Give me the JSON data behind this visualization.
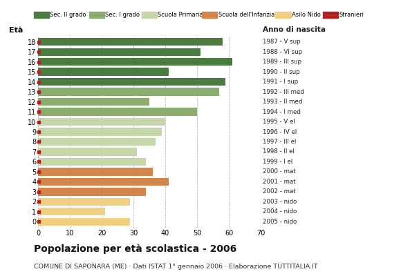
{
  "ages": [
    18,
    17,
    16,
    15,
    14,
    13,
    12,
    11,
    10,
    9,
    8,
    7,
    6,
    5,
    4,
    3,
    2,
    1,
    0
  ],
  "values": [
    58,
    51,
    61,
    41,
    59,
    57,
    35,
    50,
    40,
    39,
    37,
    31,
    34,
    36,
    41,
    34,
    29,
    21,
    29
  ],
  "colors": [
    "#4a7c3f",
    "#4a7c3f",
    "#4a7c3f",
    "#4a7c3f",
    "#4a7c3f",
    "#8aac6e",
    "#8aac6e",
    "#8aac6e",
    "#c5d6a8",
    "#c5d6a8",
    "#c5d6a8",
    "#c5d6a8",
    "#c5d6a8",
    "#d4854a",
    "#d4854a",
    "#d4854a",
    "#f0d080",
    "#f0d080",
    "#f0d080"
  ],
  "right_labels": [
    "1987 - V sup",
    "1988 - VI sup",
    "1989 - III sup",
    "1990 - II sup",
    "1991 - I sup",
    "1992 - III med",
    "1993 - II med",
    "1994 - I med",
    "1995 - V el",
    "1996 - IV el",
    "1997 - III el",
    "1998 - II el",
    "1999 - I el",
    "2000 - mat",
    "2001 - mat",
    "2002 - mat",
    "2003 - nido",
    "2004 - nido",
    "2005 - nido"
  ],
  "stranieri_color": "#b22222",
  "legend_labels": [
    "Sec. II grado",
    "Sec. I grado",
    "Scuola Primaria",
    "Scuola dell'Infanzia",
    "Asilo Nido",
    "Stranieri"
  ],
  "legend_colors": [
    "#4a7c3f",
    "#8aac6e",
    "#c5d6a8",
    "#d4854a",
    "#f0d080",
    "#b22222"
  ],
  "title": "Popolazione per età scolastica - 2006",
  "subtitle": "COMUNE DI SAPONARA (ME) · Dati ISTAT 1° gennaio 2006 · Elaborazione TUTTITALIA.IT",
  "ylabel_eta": "Età",
  "ylabel_anno": "Anno di nascita",
  "xlim": [
    0,
    70
  ],
  "xticks": [
    0,
    10,
    20,
    30,
    40,
    50,
    60,
    70
  ],
  "bg_color": "#ffffff",
  "grid_color": "#bbbbbb",
  "bar_height": 0.78
}
